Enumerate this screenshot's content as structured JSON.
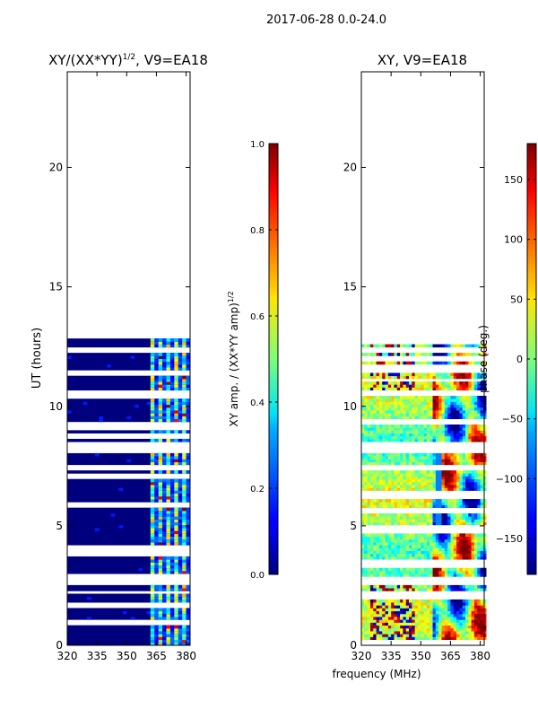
{
  "suptitle": "2017-06-28 0.0-24.0",
  "shared_xlabel": "frequency (MHz)",
  "chart_data": [
    {
      "type": "heatmap",
      "title_prefix": "XY/(XX*YY)",
      "title_exp": "1/2",
      "title_suffix": ", V9=EA18",
      "xlabel": "",
      "ylabel": "UT (hours)",
      "xlim": [
        320,
        382
      ],
      "ylim": [
        0,
        24
      ],
      "xticks": [
        320,
        335,
        350,
        365,
        380
      ],
      "yticks": [
        0,
        5,
        10,
        15,
        20
      ],
      "data_extent_hours": [
        0,
        12.8
      ],
      "colorbar": {
        "label_prefix": "XY amp. / (XX*YY amp)",
        "label_exp": "1/2",
        "range": [
          0.0,
          1.0
        ],
        "ticks": [
          "0.0",
          "0.2",
          "0.4",
          "0.6",
          "0.8",
          "1.0"
        ]
      }
    },
    {
      "type": "heatmap",
      "title": "XY, V9=EA18",
      "xlabel": "frequency (MHz)",
      "ylabel": "",
      "xlim": [
        320,
        382
      ],
      "ylim": [
        0,
        24
      ],
      "xticks": [
        320,
        335,
        350,
        365,
        380
      ],
      "yticks": [
        0,
        5,
        10,
        15,
        20
      ],
      "data_extent_hours": [
        0,
        12.8
      ],
      "colorbar": {
        "label": "phase (deg.)",
        "range": [
          -180,
          180
        ],
        "ticks": [
          "−150",
          "−100",
          "−50",
          "0",
          "50",
          "100",
          "150"
        ]
      }
    }
  ]
}
